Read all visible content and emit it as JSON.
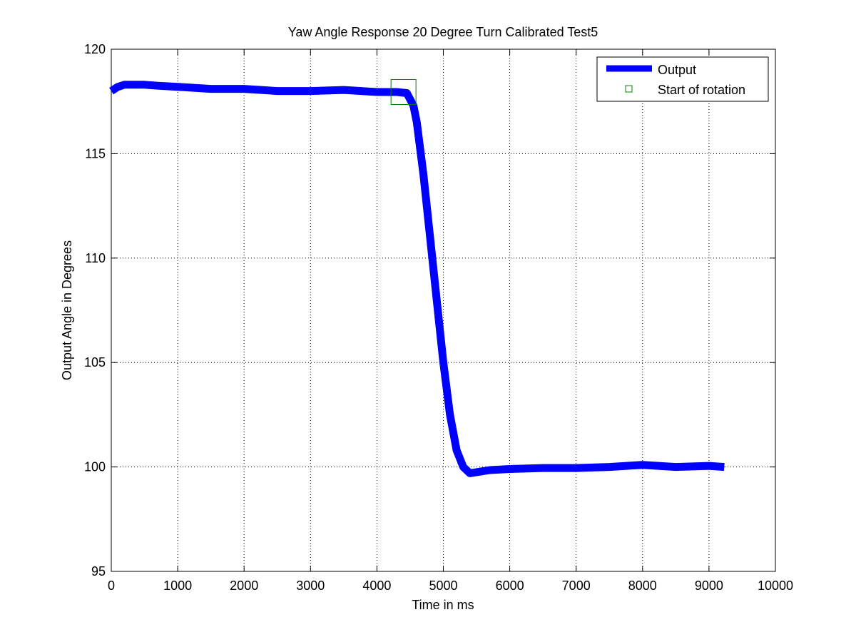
{
  "chart_data": {
    "type": "line",
    "title": "Yaw Angle Response 20 Degree Turn Calibrated Test5",
    "xlabel": "Time in ms",
    "ylabel": "Output Angle in Degrees",
    "xlim": [
      0,
      10000
    ],
    "ylim": [
      95,
      120
    ],
    "xticks": [
      0,
      1000,
      2000,
      3000,
      4000,
      5000,
      6000,
      7000,
      8000,
      9000,
      10000
    ],
    "yticks": [
      95,
      100,
      105,
      110,
      115,
      120
    ],
    "xtick_labels": [
      "0",
      "1000",
      "2000",
      "3000",
      "4000",
      "5000",
      "6000",
      "7000",
      "8000",
      "9000",
      "10000"
    ],
    "ytick_labels": [
      "95",
      "100",
      "105",
      "110",
      "115",
      "120"
    ],
    "grid": true,
    "legend_position": "top-right",
    "colors": {
      "output": "#0000ff",
      "marker": "#008000"
    },
    "series": [
      {
        "name": "Output",
        "x": [
          0,
          100,
          200,
          300,
          500,
          700,
          1000,
          1500,
          2000,
          2500,
          3000,
          3500,
          4000,
          4300,
          4450,
          4550,
          4600,
          4700,
          4800,
          4900,
          5000,
          5100,
          5200,
          5300,
          5400,
          5500,
          5700,
          6000,
          6500,
          7000,
          7500,
          8000,
          8500,
          9000,
          9230
        ],
        "y": [
          118.0,
          118.2,
          118.3,
          118.3,
          118.3,
          118.25,
          118.2,
          118.1,
          118.1,
          118.0,
          118.0,
          118.05,
          117.95,
          117.95,
          117.9,
          117.3,
          116.5,
          114.0,
          111.0,
          108.0,
          105.0,
          102.5,
          100.8,
          100.0,
          99.7,
          99.75,
          99.85,
          99.9,
          99.95,
          99.95,
          100.0,
          100.1,
          100.0,
          100.05,
          100.0
        ]
      },
      {
        "name": "Start of rotation",
        "marker": "square",
        "x": [
          4400
        ],
        "y": [
          117.95
        ]
      }
    ]
  }
}
